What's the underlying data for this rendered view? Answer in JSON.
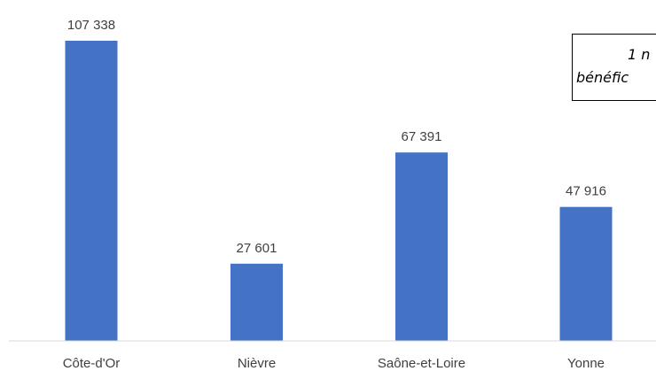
{
  "chart_data": {
    "type": "bar",
    "categories": [
      "Côte-d'Or",
      "Nièvre",
      "Saône-et-Loire",
      "Yonne"
    ],
    "values": [
      107338,
      27601,
      67391,
      47916
    ],
    "value_labels": [
      "107 338",
      "27 601",
      "67 391",
      "47 916"
    ],
    "bar_color": "#4472C4",
    "ylim": [
      0,
      110000
    ],
    "grid": false,
    "legend": "none"
  },
  "annotation": {
    "line1": "1 n",
    "line2": "bénéfic"
  }
}
